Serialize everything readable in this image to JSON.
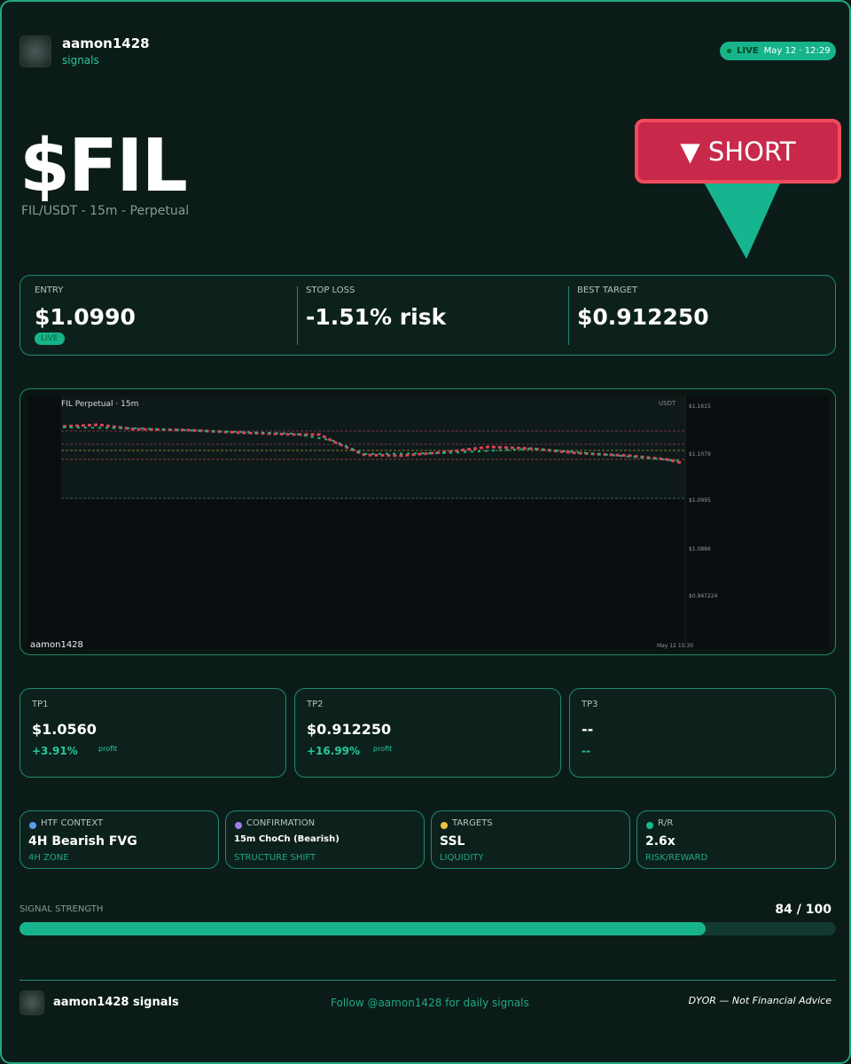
{
  "header": {
    "username": "aamon1428",
    "subtitle": "signals",
    "live": "LIVE",
    "timestamp": "May 12 · 12:29"
  },
  "hero": {
    "ticker": "$FIL",
    "pair": "FIL/USDT - 15m - Perpetual",
    "direction": "▼ SHORT"
  },
  "stats": [
    {
      "label": "ENTRY",
      "value": "$1.0990",
      "badge": "LIVE"
    },
    {
      "label": "STOP LOSS",
      "value": "-1.51% risk"
    },
    {
      "label": "BEST TARGET",
      "value": "$0.912250"
    }
  ],
  "chart_image": {
    "title": "FIL Perpetual · 15m",
    "currency": "USDT",
    "price_labels": [
      "$1.1615",
      "$1.1079",
      "$1.0995",
      "$1.0886",
      "$0.947224"
    ],
    "watermark": "aamon1428",
    "date": "May 12 15:30"
  },
  "targets": [
    {
      "label": "TP1",
      "price": "$1.0560",
      "change": "+3.91%",
      "note": "profit"
    },
    {
      "label": "TP2",
      "price": "$0.912250",
      "change": "+16.99%",
      "note": "profit"
    },
    {
      "label": "TP3",
      "price": "--",
      "change": "--"
    }
  ],
  "context": [
    {
      "label": "HTF CONTEXT",
      "value": "4H Bearish FVG",
      "sub": "4H ZONE",
      "dot": "#5b9cf0"
    },
    {
      "label": "CONFIRMATION",
      "value": "15m ChoCh (Bearish)",
      "sub": "STRUCTURE SHIFT",
      "dot": "#a07cf0"
    },
    {
      "label": "TARGETS",
      "value": "SSL",
      "sub": "LIQUIDITY",
      "dot": "#f0c040"
    },
    {
      "label": "R/R",
      "value": "2.6x",
      "sub": "RISK/REWARD",
      "dot": "#19b98f"
    }
  ],
  "strength": {
    "label": "SIGNAL STRENGTH",
    "score": 84,
    "max": 100,
    "score_label": "84 / 100"
  },
  "footer": {
    "brand": "aamon1428 signals",
    "cta": "Follow @aamon1428 for daily signals",
    "disclaimer": "DYOR — Not Financial Advice"
  }
}
